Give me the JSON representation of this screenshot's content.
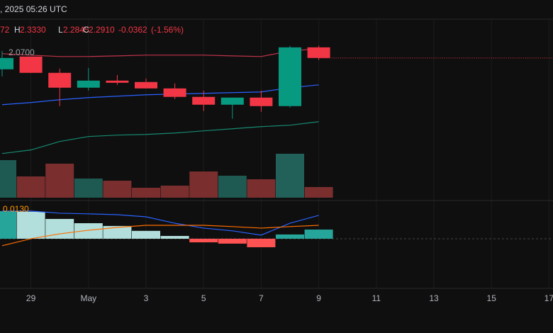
{
  "header": {
    "datetime": ", 2025 05:26 UTC",
    "ohlc": {
      "open_tail": "72",
      "high_key": "H",
      "high": "2.3330",
      "low_key": "L",
      "low": "2.2845",
      "close_key": "C",
      "close": "2.2910",
      "change": "-0.0362",
      "change_pct": "(-1.56%)"
    }
  },
  "chart_data": [
    {
      "type": "candlestick",
      "categories": [
        null,
        "29",
        null,
        "May",
        null,
        "3",
        null,
        "5",
        null,
        "7",
        null,
        "9"
      ],
      "more_categories": [
        null,
        "11",
        null,
        "13",
        null,
        "15",
        null,
        "17"
      ],
      "open": [
        2.2524,
        2.2958,
        2.2403,
        2.1897,
        2.2138,
        2.209,
        2.1872,
        2.1583,
        2.1317,
        2.1559,
        2.1269,
        2.3272
      ],
      "high": [
        2.3151,
        2.2958,
        2.2548,
        2.2572,
        2.2331,
        2.221,
        2.2041,
        2.18,
        2.1559,
        2.18,
        2.332,
        2.333
      ],
      "low": [
        2.2283,
        2.2403,
        2.1269,
        2.18,
        2.1993,
        2.1872,
        2.151,
        2.11,
        2.0835,
        2.1076,
        2.1221,
        2.2845
      ],
      "close": [
        2.291,
        2.2403,
        2.1897,
        2.2138,
        2.2065,
        2.1872,
        2.1583,
        2.1317,
        2.1559,
        2.1269,
        2.3272,
        2.291
      ],
      "up_color": "#089981",
      "down_color": "#f23645",
      "series": [
        {
          "color": "#c2344b",
          "values": [
            2.3055,
            2.3007,
            2.2958,
            2.2958,
            2.2982,
            2.3007,
            2.3007,
            2.3007,
            2.2982,
            2.2958,
            2.3151,
            2.3224
          ]
        },
        {
          "color": "#2962ff",
          "values": [
            2.1317,
            2.139,
            2.1486,
            2.1559,
            2.1607,
            2.1655,
            2.1679,
            2.1704,
            2.1728,
            2.1752,
            2.1897,
            2.1993
          ]
        },
        {
          "color": "#168a72",
          "values": [
            1.9653,
            1.9774,
            2.0063,
            2.0232,
            2.028,
            2.0304,
            2.0352,
            2.0425,
            2.0497,
            2.0569,
            2.0618,
            2.0738
          ]
        }
      ],
      "annotation": "2.0700",
      "ylim": [
        1.95,
        2.421
      ]
    },
    {
      "type": "bar",
      "values": [
        53,
        30,
        48,
        27,
        24,
        14,
        17,
        37,
        31,
        26,
        62,
        15
      ],
      "colors": [
        "#1e5a51",
        "#7a2e2e",
        "#7a2e2e",
        "#1e5a51",
        "#7a2e2e",
        "#7a2e2e",
        "#7a2e2e",
        "#7a2e2e",
        "#1e5a51",
        "#7a2e2e",
        "#22605a",
        "#7a2e2e"
      ],
      "ylim": [
        0,
        70
      ]
    },
    {
      "type": "bar",
      "values": [
        0.013,
        0.0127,
        0.0093,
        0.0073,
        0.006,
        0.0037,
        0.0013,
        -0.0017,
        -0.0023,
        -0.004,
        0.002,
        0.0043
      ],
      "colors": [
        "#26a69a",
        "#b2dfdb",
        "#b2dfdb",
        "#b2dfdb",
        "#b2dfdb",
        "#b2dfdb",
        "#b2dfdb",
        "#ff5252",
        "#ff5252",
        "#ff5252",
        "#26a69a",
        "#26a69a"
      ],
      "series": [
        {
          "color": "#2962ff",
          "values": [
            0.013,
            0.013,
            0.012,
            0.0117,
            0.0113,
            0.0103,
            0.0073,
            0.005,
            0.0037,
            0.0017,
            0.0073,
            0.011
          ]
        },
        {
          "color": "#ff6d00",
          "values": [
            -0.0033,
            0,
            0.0023,
            0.004,
            0.0053,
            0.0063,
            0.0063,
            0.0063,
            0.0057,
            0.005,
            0.0057,
            0.0063
          ]
        }
      ],
      "annotation": "0.0130",
      "ylim": [
        -0.021,
        0.0173
      ]
    }
  ]
}
